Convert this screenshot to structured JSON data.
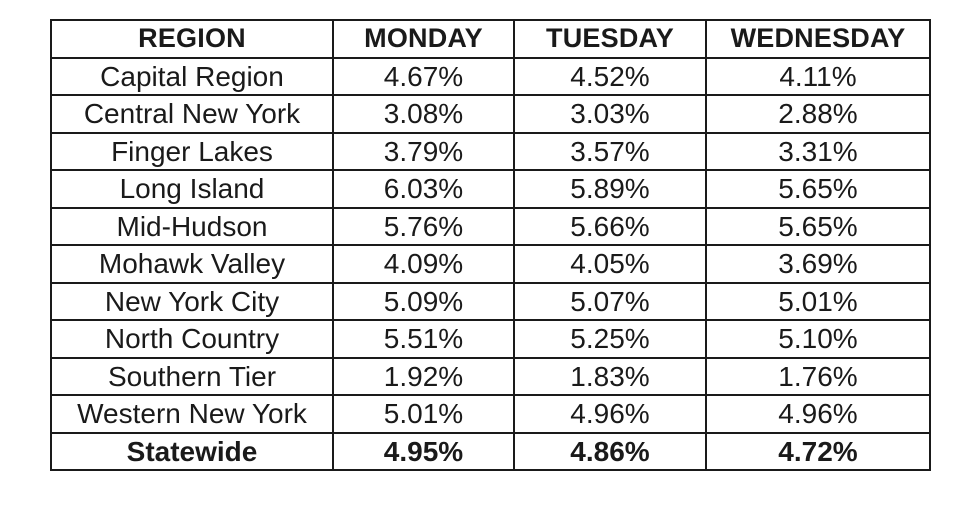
{
  "table": {
    "headers": [
      "REGION",
      "MONDAY",
      "TUESDAY",
      "WEDNESDAY"
    ],
    "rows": [
      [
        "Capital Region",
        "4.67%",
        "4.52%",
        "4.11%"
      ],
      [
        "Central New York",
        "3.08%",
        "3.03%",
        "2.88%"
      ],
      [
        "Finger Lakes",
        "3.79%",
        "3.57%",
        "3.31%"
      ],
      [
        "Long Island",
        "6.03%",
        "5.89%",
        "5.65%"
      ],
      [
        "Mid-Hudson",
        "5.76%",
        "5.66%",
        "5.65%"
      ],
      [
        "Mohawk Valley",
        "4.09%",
        "4.05%",
        "3.69%"
      ],
      [
        "New York City",
        "5.09%",
        "5.07%",
        "5.01%"
      ],
      [
        "North Country",
        "5.51%",
        "5.25%",
        "5.10%"
      ],
      [
        "Southern Tier",
        "1.92%",
        "1.83%",
        "1.76%"
      ],
      [
        "Western New York",
        "5.01%",
        "4.96%",
        "4.96%"
      ],
      [
        "Statewide",
        "4.95%",
        "4.86%",
        "4.72%"
      ]
    ],
    "bold_last_row": true
  }
}
